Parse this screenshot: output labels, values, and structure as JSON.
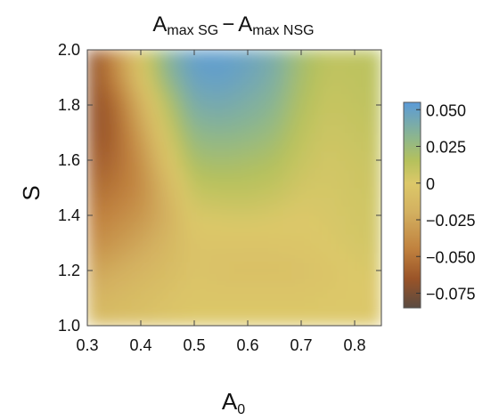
{
  "chart_data": {
    "type": "heatmap",
    "title": {
      "main": "A",
      "sub1": "max SG",
      "minus": "−",
      "main2": "A",
      "sub2": "max NSG"
    },
    "xlabel": {
      "main": "A",
      "sub": "0"
    },
    "ylabel": "S",
    "xlim": [
      0.3,
      0.85
    ],
    "ylim": [
      1.0,
      2.0
    ],
    "x_ticks": [
      "0.3",
      "0.4",
      "0.5",
      "0.6",
      "0.7",
      "0.8"
    ],
    "y_ticks": [
      "1.0",
      "1.2",
      "1.4",
      "1.6",
      "1.8",
      "2.0"
    ],
    "colorbar": {
      "range": [
        -0.085,
        0.055
      ],
      "ticks": [
        "0.050",
        "0.025",
        "0",
        "−0.025",
        "−0.050",
        "−0.075"
      ],
      "tick_values": [
        0.05,
        0.025,
        0,
        -0.025,
        -0.05,
        -0.075
      ],
      "colormap": [
        {
          "v": -0.085,
          "color": "#5a4a40"
        },
        {
          "v": -0.065,
          "color": "#9a5428"
        },
        {
          "v": -0.045,
          "color": "#c0813e"
        },
        {
          "v": -0.02,
          "color": "#d3b060"
        },
        {
          "v": 0.0,
          "color": "#dcc869"
        },
        {
          "v": 0.015,
          "color": "#b5c15c"
        },
        {
          "v": 0.03,
          "color": "#8fb78a"
        },
        {
          "v": 0.055,
          "color": "#5a9ad8"
        }
      ]
    },
    "grid": {
      "x": [
        0.3,
        0.35,
        0.4,
        0.45,
        0.5,
        0.55,
        0.6,
        0.65,
        0.7,
        0.75,
        0.8,
        0.85
      ],
      "y": [
        1.0,
        1.1,
        1.2,
        1.3,
        1.4,
        1.5,
        1.6,
        1.7,
        1.8,
        1.9,
        2.0
      ],
      "z": [
        [
          -0.01,
          -0.008,
          -0.006,
          -0.003,
          0.0,
          0.0,
          0.0,
          0.0,
          0.0,
          0.0,
          0.0,
          -0.003
        ],
        [
          -0.018,
          -0.013,
          -0.009,
          -0.005,
          -0.002,
          -0.002,
          -0.002,
          -0.002,
          -0.002,
          -0.001,
          0.0,
          -0.002
        ],
        [
          -0.028,
          -0.022,
          -0.016,
          -0.01,
          -0.004,
          -0.006,
          -0.007,
          -0.007,
          -0.006,
          -0.003,
          0.0,
          0.002
        ],
        [
          -0.04,
          -0.033,
          -0.025,
          -0.015,
          -0.004,
          -0.004,
          -0.004,
          -0.003,
          -0.002,
          0.0,
          0.003,
          0.004
        ],
        [
          -0.048,
          -0.042,
          -0.034,
          -0.02,
          0.002,
          0.003,
          0.004,
          0.002,
          0.0,
          0.002,
          0.004,
          0.005
        ],
        [
          -0.055,
          -0.05,
          -0.04,
          -0.015,
          0.01,
          0.012,
          0.012,
          0.01,
          0.004,
          0.003,
          0.005,
          0.006
        ],
        [
          -0.062,
          -0.056,
          -0.038,
          -0.005,
          0.02,
          0.022,
          0.02,
          0.017,
          0.008,
          0.004,
          0.006,
          0.008
        ],
        [
          -0.068,
          -0.06,
          -0.03,
          0.005,
          0.03,
          0.032,
          0.03,
          0.025,
          0.012,
          0.006,
          0.008,
          0.01
        ],
        [
          -0.07,
          -0.058,
          -0.02,
          0.015,
          0.04,
          0.042,
          0.038,
          0.032,
          0.016,
          0.008,
          0.01,
          0.012
        ],
        [
          -0.072,
          -0.045,
          -0.005,
          0.03,
          0.048,
          0.05,
          0.045,
          0.038,
          0.02,
          0.01,
          0.011,
          0.013
        ],
        [
          -0.075,
          -0.04,
          0.0,
          0.035,
          0.052,
          0.052,
          0.048,
          0.04,
          0.022,
          0.012,
          0.012,
          0.014
        ]
      ]
    }
  }
}
